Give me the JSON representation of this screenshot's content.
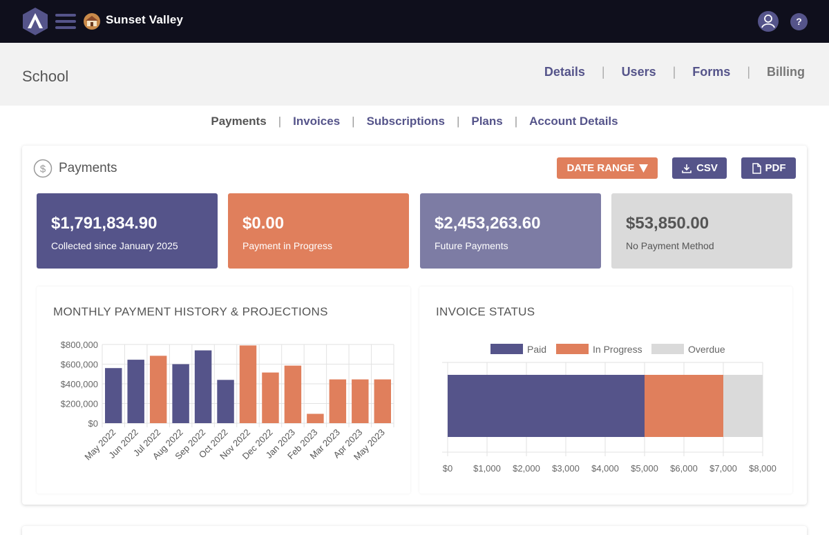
{
  "app": {
    "title": "Sunset Valley"
  },
  "header": {
    "page_title": "School",
    "nav": [
      "Details",
      "Users",
      "Forms",
      "Billing"
    ]
  },
  "subnav": [
    "Payments",
    "Invoices",
    "Subscriptions",
    "Plans",
    "Account Details"
  ],
  "payments": {
    "title": "Payments",
    "date_range_label": "DATE RANGE",
    "csv_label": "CSV",
    "pdf_label": "PDF"
  },
  "stats": [
    {
      "value": "$1,791,834.90",
      "label": "Collected since January 2025"
    },
    {
      "value": "$0.00",
      "label": "Payment in Progress"
    },
    {
      "value": "$2,453,263.60",
      "label": "Future Payments"
    },
    {
      "value": "$53,850.00",
      "label": "No Payment Method"
    }
  ],
  "colors": {
    "primary": "#55548a",
    "accent": "#e07f5c",
    "muted": "#dadada",
    "future": "#7d7ca4"
  },
  "chart_data": [
    {
      "type": "bar",
      "title": "MONTHLY PAYMENT HISTORY & PROJECTIONS",
      "categories": [
        "May 2022",
        "Jun 2022",
        "Jul 2022",
        "Aug 2022",
        "Sep 2022",
        "Oct 2022",
        "Nov 2022",
        "Dec 2022",
        "Jan 2023",
        "Feb 2023",
        "Mar 2023",
        "Apr 2023",
        "May 2023"
      ],
      "values": [
        560000,
        645000,
        685000,
        600000,
        740000,
        440000,
        790000,
        515000,
        585000,
        95000,
        445000,
        445000,
        445000
      ],
      "kind": [
        "history",
        "history",
        "projection",
        "history",
        "history",
        "history",
        "projection",
        "projection",
        "projection",
        "projection",
        "projection",
        "projection",
        "projection"
      ],
      "ylim": [
        0,
        800000
      ],
      "yticks": [
        "$0",
        "$200,000",
        "$400,000",
        "$600,000",
        "$800,000"
      ],
      "grid": true
    },
    {
      "type": "bar",
      "orientation": "horizontal-stacked",
      "title": "INVOICE STATUS",
      "series": [
        {
          "name": "Paid",
          "values": [
            5000
          ]
        },
        {
          "name": "In Progress",
          "values": [
            2000
          ]
        },
        {
          "name": "Overdue",
          "values": [
            1000
          ]
        }
      ],
      "xlim": [
        0,
        8000
      ],
      "xticks": [
        "$0",
        "$1,000",
        "$2,000",
        "$3,000",
        "$4,000",
        "$5,000",
        "$6,000",
        "$7,000",
        "$8,000"
      ],
      "legend": "top-center",
      "grid": true
    }
  ]
}
